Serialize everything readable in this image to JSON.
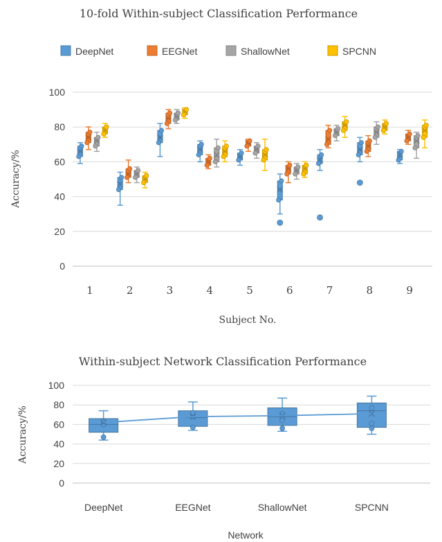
{
  "chart_data": [
    {
      "type": "box",
      "title": "10-fold Within-subject Classification Performance",
      "xlabel": "Subject No.",
      "ylabel": "Accuracy/%",
      "ylim": [
        0,
        100
      ],
      "yticks": [
        0,
        20,
        40,
        60,
        80,
        100
      ],
      "grid": true,
      "legend": "top",
      "categories": [
        "1",
        "2",
        "3",
        "4",
        "5",
        "6",
        "7",
        "8",
        "9"
      ],
      "series": [
        {
          "name": "DeepNet",
          "color": "#5b9bd5",
          "boxes": [
            {
              "min": 59,
              "q1": 63,
              "median": 66,
              "q3": 69,
              "max": 71,
              "mean": 66,
              "outliers": []
            },
            {
              "min": 35,
              "q1": 44,
              "median": 48,
              "q3": 51,
              "max": 54,
              "mean": 47,
              "outliers": []
            },
            {
              "min": 63,
              "q1": 71,
              "median": 74,
              "q3": 78,
              "max": 82,
              "mean": 74,
              "outliers": []
            },
            {
              "min": 60,
              "q1": 64,
              "median": 67,
              "q3": 70,
              "max": 72,
              "mean": 67,
              "outliers": []
            },
            {
              "min": 58,
              "q1": 61,
              "median": 63,
              "q3": 65,
              "max": 67,
              "mean": 63,
              "outliers": []
            },
            {
              "min": 30,
              "q1": 38,
              "median": 44,
              "q3": 49,
              "max": 53,
              "mean": 44,
              "outliers": [
                25
              ]
            },
            {
              "min": 55,
              "q1": 59,
              "median": 62,
              "q3": 64,
              "max": 67,
              "mean": 61,
              "outliers": [
                28
              ]
            },
            {
              "min": 60,
              "q1": 64,
              "median": 67,
              "q3": 71,
              "max": 74,
              "mean": 67,
              "outliers": [
                48
              ]
            },
            {
              "min": 59,
              "q1": 61,
              "median": 63,
              "q3": 66,
              "max": 67,
              "mean": 64,
              "outliers": []
            }
          ]
        },
        {
          "name": "EEGNet",
          "color": "#ed7d31",
          "boxes": [
            {
              "min": 67,
              "q1": 71,
              "median": 74,
              "q3": 77,
              "max": 80,
              "mean": 74,
              "outliers": []
            },
            {
              "min": 48,
              "q1": 51,
              "median": 53,
              "q3": 56,
              "max": 61,
              "mean": 53,
              "outliers": []
            },
            {
              "min": 79,
              "q1": 82,
              "median": 85,
              "q3": 88,
              "max": 90,
              "mean": 85,
              "outliers": []
            },
            {
              "min": 56,
              "q1": 58,
              "median": 60,
              "q3": 62,
              "max": 64,
              "mean": 60,
              "outliers": []
            },
            {
              "min": 66,
              "q1": 69,
              "median": 71,
              "q3": 72,
              "max": 73,
              "mean": 71,
              "outliers": []
            },
            {
              "min": 48,
              "q1": 53,
              "median": 56,
              "q3": 58,
              "max": 60,
              "mean": 56,
              "outliers": []
            },
            {
              "min": 68,
              "q1": 70,
              "median": 73,
              "q3": 78,
              "max": 81,
              "mean": 73,
              "outliers": []
            },
            {
              "min": 63,
              "q1": 66,
              "median": 69,
              "q3": 72,
              "max": 75,
              "mean": 69,
              "outliers": []
            },
            {
              "min": 70,
              "q1": 72,
              "median": 74,
              "q3": 76,
              "max": 78,
              "mean": 74,
              "outliers": []
            }
          ]
        },
        {
          "name": "ShallowNet",
          "color": "#a5a5a5",
          "boxes": [
            {
              "min": 66,
              "q1": 69,
              "median": 72,
              "q3": 74,
              "max": 77,
              "mean": 72,
              "outliers": []
            },
            {
              "min": 48,
              "q1": 51,
              "median": 53,
              "q3": 55,
              "max": 57,
              "mean": 53,
              "outliers": []
            },
            {
              "min": 82,
              "q1": 84,
              "median": 86,
              "q3": 88,
              "max": 90,
              "mean": 86,
              "outliers": []
            },
            {
              "min": 57,
              "q1": 60,
              "median": 63,
              "q3": 68,
              "max": 73,
              "mean": 64,
              "outliers": []
            },
            {
              "min": 62,
              "q1": 65,
              "median": 67,
              "q3": 69,
              "max": 71,
              "mean": 67,
              "outliers": []
            },
            {
              "min": 50,
              "q1": 53,
              "median": 55,
              "q3": 57,
              "max": 59,
              "mean": 55,
              "outliers": []
            },
            {
              "min": 72,
              "q1": 75,
              "median": 77,
              "q3": 79,
              "max": 81,
              "mean": 77,
              "outliers": []
            },
            {
              "min": 70,
              "q1": 74,
              "median": 77,
              "q3": 80,
              "max": 83,
              "mean": 77,
              "outliers": []
            },
            {
              "min": 62,
              "q1": 68,
              "median": 72,
              "q3": 75,
              "max": 77,
              "mean": 72,
              "outliers": []
            }
          ]
        },
        {
          "name": "SPCNN",
          "color": "#ffc000",
          "boxes": [
            {
              "min": 74,
              "q1": 76,
              "median": 78,
              "q3": 80,
              "max": 82,
              "mean": 78,
              "outliers": []
            },
            {
              "min": 45,
              "q1": 48,
              "median": 50,
              "q3": 52,
              "max": 54,
              "mean": 50,
              "outliers": []
            },
            {
              "min": 85,
              "q1": 87,
              "median": 89,
              "q3": 90,
              "max": 91,
              "mean": 89,
              "outliers": []
            },
            {
              "min": 60,
              "q1": 63,
              "median": 66,
              "q3": 69,
              "max": 72,
              "mean": 66,
              "outliers": []
            },
            {
              "min": 55,
              "q1": 61,
              "median": 64,
              "q3": 67,
              "max": 73,
              "mean": 64,
              "outliers": []
            },
            {
              "min": 51,
              "q1": 53,
              "median": 56,
              "q3": 58,
              "max": 60,
              "mean": 56,
              "outliers": []
            },
            {
              "min": 74,
              "q1": 78,
              "median": 81,
              "q3": 83,
              "max": 86,
              "mean": 81,
              "outliers": []
            },
            {
              "min": 76,
              "q1": 78,
              "median": 80,
              "q3": 82,
              "max": 84,
              "mean": 80,
              "outliers": []
            },
            {
              "min": 68,
              "q1": 74,
              "median": 78,
              "q3": 81,
              "max": 84,
              "mean": 78,
              "outliers": []
            }
          ]
        }
      ]
    },
    {
      "type": "box",
      "title": "Within-subject Network Classification Performance",
      "xlabel": "Network",
      "ylabel": "Accuracy/%",
      "ylim": [
        0,
        100
      ],
      "yticks": [
        0,
        20,
        40,
        60,
        80,
        100
      ],
      "grid": true,
      "categories": [
        "DeepNet",
        "EEGNet",
        "ShallowNet",
        "SPCNN"
      ],
      "color": "#5b9bd5",
      "mean_line": true,
      "boxes": [
        {
          "min": 44,
          "q1": 52,
          "median": 60,
          "q3": 66,
          "max": 74,
          "mean": 62,
          "points": [
            47,
            60,
            63
          ]
        },
        {
          "min": 54,
          "q1": 58,
          "median": 67,
          "q3": 74,
          "max": 83,
          "mean": 68,
          "points": [
            57,
            68,
            72
          ]
        },
        {
          "min": 53,
          "q1": 59,
          "median": 68,
          "q3": 77,
          "max": 87,
          "mean": 69,
          "points": [
            56,
            64,
            71
          ]
        },
        {
          "min": 50,
          "q1": 57,
          "median": 74,
          "q3": 82,
          "max": 89,
          "mean": 71,
          "points": [
            56,
            61,
            77
          ]
        }
      ]
    }
  ]
}
